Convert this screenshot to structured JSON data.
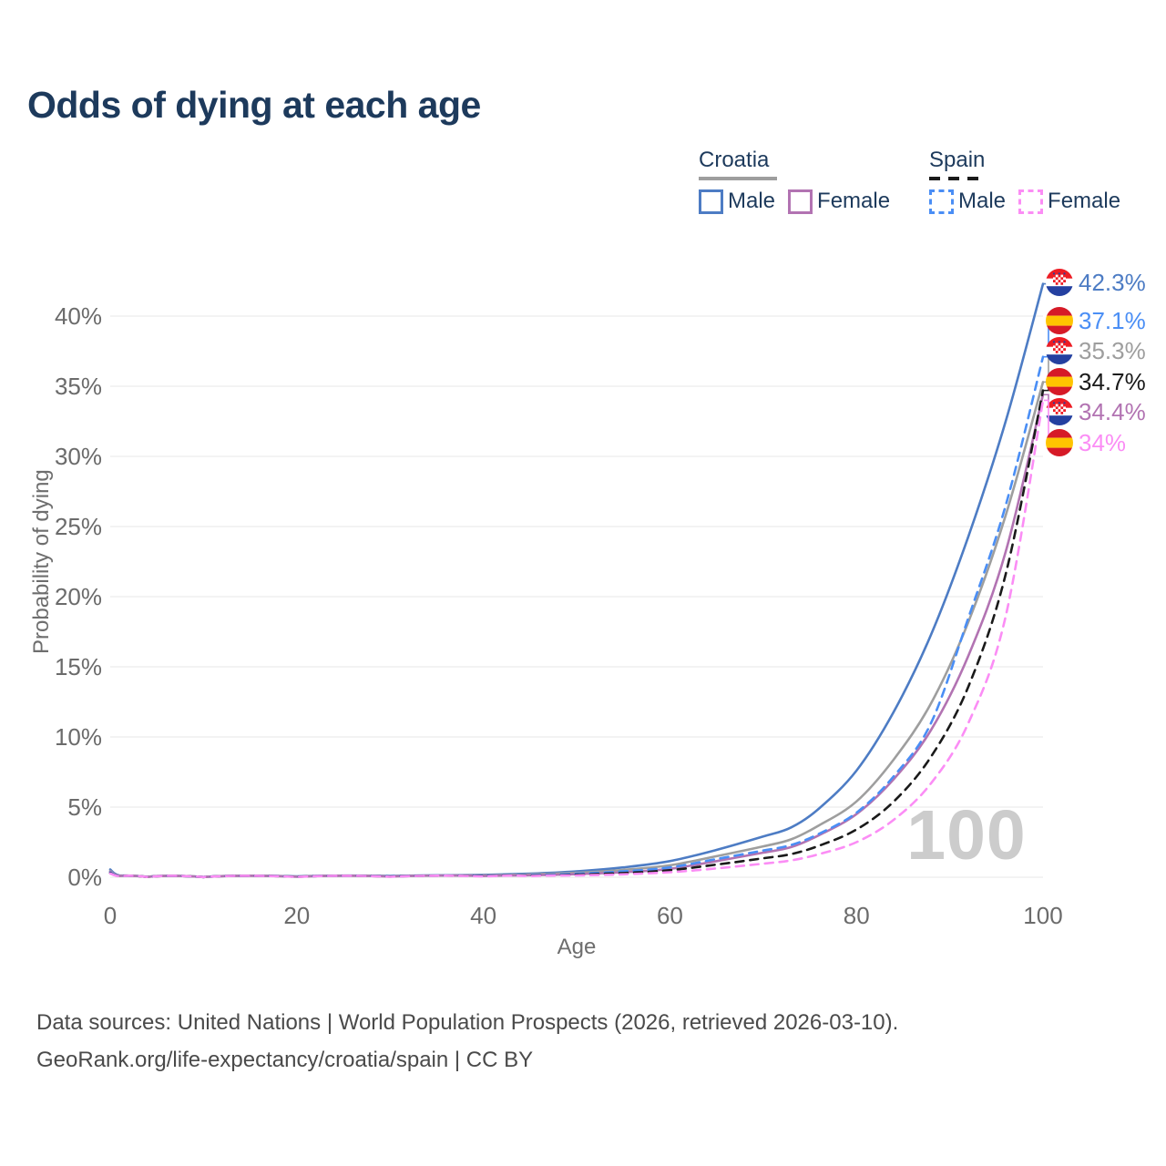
{
  "header": {
    "title": "Odds of dying at each age"
  },
  "legend": {
    "groups": [
      {
        "title": "Croatia",
        "items": [
          {
            "label": "Male"
          },
          {
            "label": "Female"
          }
        ]
      },
      {
        "title": "Spain",
        "items": [
          {
            "label": "Male"
          },
          {
            "label": "Female"
          }
        ]
      }
    ]
  },
  "chart_data": {
    "type": "line",
    "title": "Odds of dying at each age",
    "xlabel": "Age",
    "ylabel": "Probability of dying",
    "xlim": [
      0,
      100
    ],
    "ylim_pct": [
      0,
      43
    ],
    "grid": "horizontal",
    "legend_position": "top-right",
    "watermark": "100",
    "xticks": [
      {
        "value": 0,
        "label": "0"
      },
      {
        "value": 20,
        "label": "20"
      },
      {
        "value": 40,
        "label": "40"
      },
      {
        "value": 60,
        "label": "60"
      },
      {
        "value": 80,
        "label": "80"
      },
      {
        "value": 100,
        "label": "100"
      }
    ],
    "yticks": [
      {
        "value": 0,
        "label": "0%"
      },
      {
        "value": 5,
        "label": "5%"
      },
      {
        "value": 10,
        "label": "10%"
      },
      {
        "value": 15,
        "label": "15%"
      },
      {
        "value": 20,
        "label": "20%"
      },
      {
        "value": 25,
        "label": "25%"
      },
      {
        "value": 30,
        "label": "30%"
      },
      {
        "value": 35,
        "label": "35%"
      },
      {
        "value": 40,
        "label": "40%"
      }
    ],
    "ages": [
      0,
      1,
      4,
      10,
      20,
      30,
      40,
      45,
      50,
      55,
      60,
      65,
      70,
      73,
      76,
      80,
      84,
      88,
      92,
      96,
      100
    ],
    "series": [
      {
        "name": "Croatia Male",
        "country": "Croatia",
        "sex": "Male",
        "style": "solid",
        "color": "#4d7cc4",
        "end_value": 42.3,
        "end_label": "42.3%",
        "flag": "croatia",
        "values": [
          0.55,
          0.12,
          0.03,
          0.02,
          0.06,
          0.09,
          0.17,
          0.26,
          0.42,
          0.7,
          1.15,
          1.95,
          2.9,
          3.55,
          4.9,
          7.6,
          11.8,
          17.3,
          24.3,
          32.5,
          42.3
        ]
      },
      {
        "name": "Croatia Total",
        "country": "Croatia",
        "sex": "Both",
        "style": "solid",
        "color": "#9e9e9e",
        "end_value": 35.3,
        "end_label": "35.3%",
        "flag": "croatia",
        "values": [
          0.45,
          0.1,
          0.025,
          0.015,
          0.045,
          0.07,
          0.13,
          0.2,
          0.32,
          0.52,
          0.85,
          1.5,
          2.2,
          2.7,
          3.7,
          5.4,
          8.4,
          12.4,
          18.2,
          25.8,
          35.3
        ]
      },
      {
        "name": "Croatia Female",
        "country": "Croatia",
        "sex": "Female",
        "style": "solid",
        "color": "#b273b2",
        "end_value": 34.4,
        "end_label": "34.4%",
        "flag": "croatia",
        "values": [
          0.4,
          0.09,
          0.02,
          0.012,
          0.03,
          0.05,
          0.09,
          0.14,
          0.22,
          0.36,
          0.6,
          1.15,
          1.75,
          2.15,
          3.0,
          4.5,
          7.0,
          10.5,
          15.8,
          23.2,
          34.4
        ]
      },
      {
        "name": "Spain Male",
        "country": "Spain",
        "sex": "Male",
        "style": "dashed",
        "color": "#4a8ef5",
        "end_value": 37.1,
        "end_label": "37.1%",
        "flag": "spain",
        "values": [
          0.35,
          0.08,
          0.02,
          0.015,
          0.04,
          0.06,
          0.1,
          0.15,
          0.25,
          0.42,
          0.7,
          1.3,
          1.9,
          2.3,
          3.1,
          4.6,
          7.2,
          11.0,
          18.5,
          26.5,
          37.1
        ]
      },
      {
        "name": "Spain Total",
        "country": "Spain",
        "sex": "Both",
        "style": "dashed",
        "color": "#1a1a1a",
        "end_value": 34.7,
        "end_label": "34.7%",
        "flag": "spain",
        "values": [
          0.3,
          0.07,
          0.015,
          0.012,
          0.03,
          0.045,
          0.08,
          0.11,
          0.18,
          0.3,
          0.5,
          0.9,
          1.35,
          1.65,
          2.25,
          3.4,
          5.4,
          8.6,
          13.6,
          21.6,
          34.7
        ]
      },
      {
        "name": "Spain Female",
        "country": "Spain",
        "sex": "Female",
        "style": "dashed",
        "color": "#fb8df5",
        "end_value": 34.0,
        "end_label": "34%",
        "flag": "spain",
        "values": [
          0.27,
          0.06,
          0.012,
          0.01,
          0.02,
          0.03,
          0.055,
          0.08,
          0.13,
          0.21,
          0.36,
          0.63,
          0.97,
          1.2,
          1.65,
          2.5,
          4.1,
          6.7,
          11.0,
          18.6,
          34.0
        ]
      }
    ],
    "flag_colors": {
      "croatia": {
        "red": "#ed1c24",
        "white": "#ffffff",
        "blue": "#2440a0"
      },
      "spain": {
        "red": "#d61a27",
        "yellow": "#ffc400"
      }
    },
    "colors": {
      "title_text": "#1d3a5c",
      "axis_text": "#6b6b6b",
      "gridline": "#ececec",
      "watermark": "#cccccc",
      "footer_text": "#4a4a4a"
    }
  },
  "footer": {
    "line1": "Data sources: United Nations | World Population Prospects (2026, retrieved 2026-03-10).",
    "line2": "GeoRank.org/life-expectancy/croatia/spain | CC BY"
  }
}
